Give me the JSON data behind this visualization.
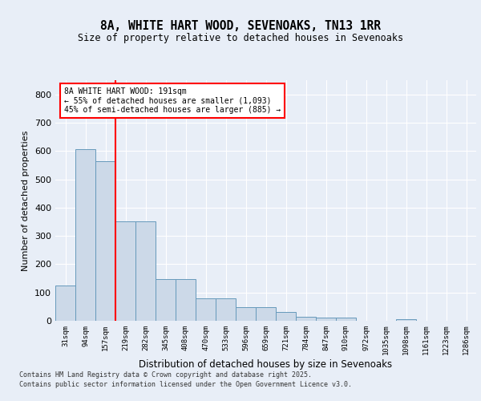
{
  "title1": "8A, WHITE HART WOOD, SEVENOAKS, TN13 1RR",
  "title2": "Size of property relative to detached houses in Sevenoaks",
  "xlabel": "Distribution of detached houses by size in Sevenoaks",
  "ylabel": "Number of detached properties",
  "categories": [
    "31sqm",
    "94sqm",
    "157sqm",
    "219sqm",
    "282sqm",
    "345sqm",
    "408sqm",
    "470sqm",
    "533sqm",
    "596sqm",
    "659sqm",
    "721sqm",
    "784sqm",
    "847sqm",
    "910sqm",
    "972sqm",
    "1035sqm",
    "1098sqm",
    "1161sqm",
    "1223sqm",
    "1286sqm"
  ],
  "values": [
    125,
    607,
    565,
    350,
    350,
    148,
    148,
    78,
    78,
    47,
    47,
    30,
    15,
    12,
    12,
    0,
    0,
    5,
    0,
    0,
    0
  ],
  "bar_color": "#ccd9e8",
  "bar_edge_color": "#6699bb",
  "vline_x": 2.5,
  "vline_color": "red",
  "annotation_text": "8A WHITE HART WOOD: 191sqm\n← 55% of detached houses are smaller (1,093)\n45% of semi-detached houses are larger (885) →",
  "annotation_box_color": "white",
  "annotation_box_edge_color": "red",
  "ylim": [
    0,
    850
  ],
  "yticks": [
    0,
    100,
    200,
    300,
    400,
    500,
    600,
    700,
    800
  ],
  "footer1": "Contains HM Land Registry data © Crown copyright and database right 2025.",
  "footer2": "Contains public sector information licensed under the Open Government Licence v3.0.",
  "bg_color": "#e8eef7",
  "plot_bg_color": "#e8eef7"
}
